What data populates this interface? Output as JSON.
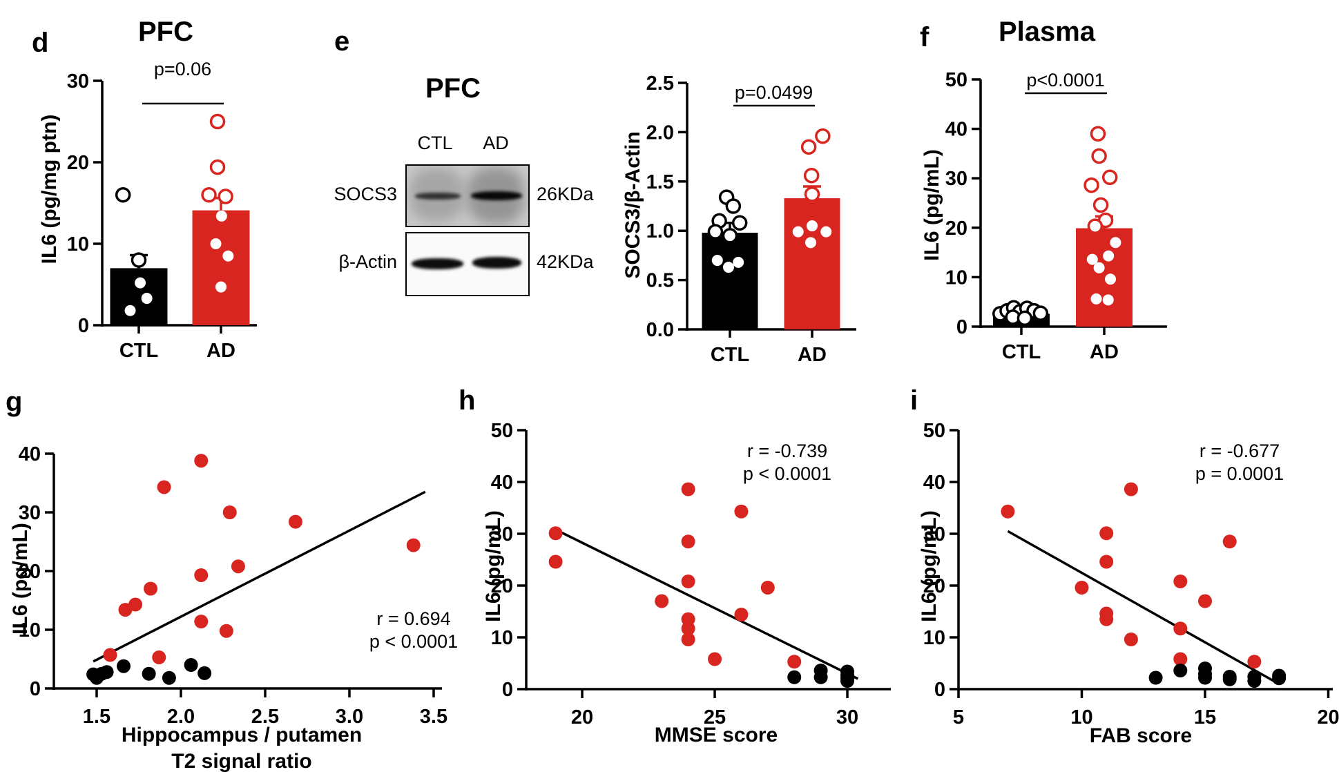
{
  "colors": {
    "ad_red": "#D8251F",
    "ctl_black": "#000000"
  },
  "panels": {
    "d": {
      "letter": "d"
    },
    "e": {
      "letter": "e",
      "blot": {
        "title": "PFC",
        "lanes": [
          "CTL",
          "AD"
        ],
        "rows": [
          {
            "protein": "SOCS3",
            "weight": "26KDa"
          },
          {
            "protein": "β-Actin",
            "weight": "42KDa"
          }
        ]
      }
    },
    "f": {
      "letter": "f"
    },
    "g": {
      "letter": "g",
      "xlabel_line1": "Hippocampus / putamen",
      "xlabel_line2": "T2 signal ratio"
    },
    "h": {
      "letter": "h"
    },
    "i": {
      "letter": "i"
    }
  },
  "chart_data": [
    {
      "id": "d",
      "type": "bar",
      "title": "PFC",
      "ylabel": "IL6 (pg/mg ptn)",
      "significance": "p=0.06",
      "ylim": [
        0,
        30
      ],
      "yticks": [
        0,
        10,
        20,
        30
      ],
      "ytick_labels": [
        "0",
        "10",
        "20",
        "30"
      ],
      "categories": [
        "CTL",
        "AD"
      ],
      "series": [
        {
          "name": "CTL",
          "color": "#000000",
          "mean": 7.0,
          "sem": 1.6,
          "points": [
            {
              "dx": -0.55,
              "y": 16.0,
              "marker": "open"
            },
            {
              "dx": 0.0,
              "y": 8.0,
              "marker": "open"
            },
            {
              "dx": 0.05,
              "y": 5.2,
              "marker": "dot"
            },
            {
              "dx": 0.28,
              "y": 3.3,
              "marker": "dot"
            },
            {
              "dx": -0.3,
              "y": 1.8,
              "marker": "dot"
            }
          ]
        },
        {
          "name": "AD",
          "color": "#D8251F",
          "mean": 14.1,
          "sem": 1.5,
          "points": [
            {
              "dx": -0.12,
              "y": 25.0,
              "marker": "open"
            },
            {
              "dx": -0.12,
              "y": 19.4,
              "marker": "open"
            },
            {
              "dx": -0.42,
              "y": 16.0,
              "marker": "open"
            },
            {
              "dx": 0.16,
              "y": 15.8,
              "marker": "open"
            },
            {
              "dx": 0.02,
              "y": 13.4,
              "marker": "dot"
            },
            {
              "dx": -0.18,
              "y": 10.0,
              "marker": "dot"
            },
            {
              "dx": 0.25,
              "y": 8.5,
              "marker": "dot"
            },
            {
              "dx": 0.0,
              "y": 4.7,
              "marker": "dot"
            }
          ]
        }
      ]
    },
    {
      "id": "e",
      "type": "bar",
      "title": "",
      "ylabel": "SOCS3/β-Actin",
      "significance": "p=0.0499",
      "ylim": [
        0,
        2.5
      ],
      "yticks": [
        0,
        0.5,
        1.0,
        1.5,
        2.0,
        2.5
      ],
      "ytick_labels": [
        "0.0",
        "0.5",
        "1.0",
        "1.5",
        "2.0",
        "2.5"
      ],
      "categories": [
        "CTL",
        "AD"
      ],
      "series": [
        {
          "name": "CTL",
          "color": "#000000",
          "mean": 0.98,
          "sem": 0.1,
          "points": [
            {
              "dx": -0.12,
              "y": 1.34,
              "marker": "open"
            },
            {
              "dx": 0.12,
              "y": 1.25,
              "marker": "open"
            },
            {
              "dx": -0.38,
              "y": 1.1,
              "marker": "open"
            },
            {
              "dx": 0.35,
              "y": 1.08,
              "marker": "open"
            },
            {
              "dx": -0.52,
              "y": 0.99,
              "marker": "open"
            },
            {
              "dx": 0.0,
              "y": 0.95,
              "marker": "open"
            },
            {
              "dx": -0.45,
              "y": 0.7,
              "marker": "dot"
            },
            {
              "dx": -0.05,
              "y": 0.63,
              "marker": "dot"
            },
            {
              "dx": 0.3,
              "y": 0.68,
              "marker": "dot"
            }
          ]
        },
        {
          "name": "AD",
          "color": "#D8251F",
          "mean": 1.33,
          "sem": 0.12,
          "points": [
            {
              "dx": 0.38,
              "y": 1.96,
              "marker": "open"
            },
            {
              "dx": -0.12,
              "y": 1.85,
              "marker": "open"
            },
            {
              "dx": -0.02,
              "y": 1.56,
              "marker": "open"
            },
            {
              "dx": 0.0,
              "y": 1.37,
              "marker": "open"
            },
            {
              "dx": -0.5,
              "y": 0.99,
              "marker": "dot"
            },
            {
              "dx": 0.0,
              "y": 1.05,
              "marker": "dot"
            },
            {
              "dx": 0.5,
              "y": 0.99,
              "marker": "dot"
            },
            {
              "dx": -0.05,
              "y": 0.88,
              "marker": "dot"
            }
          ]
        }
      ]
    },
    {
      "id": "f",
      "type": "bar",
      "title": "Plasma",
      "ylabel": "IL6 (pg/mL)",
      "significance": "p<0.0001",
      "ylim": [
        0,
        50
      ],
      "yticks": [
        0,
        10,
        20,
        30,
        40,
        50
      ],
      "ytick_labels": [
        "0",
        "10",
        "20",
        "30",
        "40",
        "50"
      ],
      "categories": [
        "CTL",
        "AD"
      ],
      "series": [
        {
          "name": "CTL",
          "color": "#000000",
          "mean": 2.6,
          "sem": 0.3,
          "points": [
            {
              "dx": -0.75,
              "y": 2.6,
              "marker": "open"
            },
            {
              "dx": -0.5,
              "y": 3.2,
              "marker": "open"
            },
            {
              "dx": -0.27,
              "y": 3.8,
              "marker": "open"
            },
            {
              "dx": -0.05,
              "y": 3.0,
              "marker": "open"
            },
            {
              "dx": 0.2,
              "y": 3.7,
              "marker": "open"
            },
            {
              "dx": 0.45,
              "y": 3.2,
              "marker": "open"
            },
            {
              "dx": 0.68,
              "y": 2.7,
              "marker": "open"
            },
            {
              "dx": -0.3,
              "y": 1.9,
              "marker": "open"
            },
            {
              "dx": 0.12,
              "y": 1.7,
              "marker": "open"
            }
          ]
        },
        {
          "name": "AD",
          "color": "#D8251F",
          "mean": 19.9,
          "sem": 2.4,
          "points": [
            {
              "dx": -0.22,
              "y": 39.0,
              "marker": "open"
            },
            {
              "dx": -0.18,
              "y": 34.5,
              "marker": "open"
            },
            {
              "dx": 0.2,
              "y": 30.2,
              "marker": "open"
            },
            {
              "dx": -0.45,
              "y": 28.6,
              "marker": "open"
            },
            {
              "dx": -0.12,
              "y": 24.6,
              "marker": "open"
            },
            {
              "dx": 0.05,
              "y": 21.5,
              "marker": "open"
            },
            {
              "dx": -0.32,
              "y": 20.3,
              "marker": "open"
            },
            {
              "dx": 0.4,
              "y": 17.0,
              "marker": "dot"
            },
            {
              "dx": 0.15,
              "y": 14.3,
              "marker": "dot"
            },
            {
              "dx": -0.42,
              "y": 13.6,
              "marker": "dot"
            },
            {
              "dx": -0.18,
              "y": 11.9,
              "marker": "dot"
            },
            {
              "dx": 0.22,
              "y": 9.6,
              "marker": "dot"
            },
            {
              "dx": -0.28,
              "y": 5.6,
              "marker": "dot"
            },
            {
              "dx": 0.14,
              "y": 5.4,
              "marker": "dot"
            }
          ]
        }
      ]
    },
    {
      "id": "g",
      "type": "scatter",
      "ylabel": "IL6 (pg/mL)",
      "xlabel": "Hippocampus / putamen T2 signal ratio",
      "r_label": "r = 0.694",
      "p_label": "p < 0.0001",
      "xlim": [
        1.246,
        3.55
      ],
      "ylim": [
        0,
        40
      ],
      "xticks": [
        1.5,
        2.0,
        2.5,
        3.0,
        3.5
      ],
      "xtick_labels": [
        "1.5",
        "2.0",
        "2.5",
        "3.0",
        "3.5"
      ],
      "yticks": [
        0,
        10,
        20,
        30,
        40
      ],
      "ytick_labels": [
        "0",
        "10",
        "20",
        "30",
        "40"
      ],
      "trendline": {
        "x1": 1.48,
        "y1": 4.6,
        "x2": 3.45,
        "y2": 33.5
      },
      "series": [
        {
          "name": "AD",
          "color": "#D8251F",
          "points": [
            [
              2.12,
              38.8
            ],
            [
              1.9,
              34.3
            ],
            [
              2.29,
              30.0
            ],
            [
              2.68,
              28.4
            ],
            [
              3.38,
              24.4
            ],
            [
              2.34,
              20.8
            ],
            [
              2.12,
              19.3
            ],
            [
              1.82,
              17.0
            ],
            [
              1.73,
              14.3
            ],
            [
              1.67,
              13.4
            ],
            [
              2.12,
              11.4
            ],
            [
              2.27,
              9.8
            ],
            [
              1.58,
              5.7
            ],
            [
              1.87,
              5.3
            ]
          ]
        },
        {
          "name": "CTL",
          "color": "#000000",
          "points": [
            [
              1.48,
              2.4
            ],
            [
              1.5,
              1.8
            ],
            [
              1.53,
              2.5
            ],
            [
              1.56,
              2.8
            ],
            [
              1.66,
              3.8
            ],
            [
              1.81,
              2.5
            ],
            [
              1.93,
              1.8
            ],
            [
              2.06,
              4.0
            ],
            [
              2.14,
              2.6
            ]
          ]
        }
      ]
    },
    {
      "id": "h",
      "type": "scatter",
      "ylabel": "IL6 (pg/mL)",
      "xlabel": "MMSE score",
      "r_label": "r = -0.739",
      "p_label": "p < 0.0001",
      "xlim": [
        17.89,
        31.7
      ],
      "ylim": [
        0,
        50
      ],
      "xticks": [
        20,
        25,
        30
      ],
      "xtick_labels": [
        "20",
        "25",
        "30"
      ],
      "yticks": [
        0,
        10,
        20,
        30,
        40,
        50
      ],
      "ytick_labels": [
        "0",
        "10",
        "20",
        "30",
        "40",
        "50"
      ],
      "trendline": {
        "x1": 19.0,
        "y1": 30.8,
        "x2": 30.4,
        "y2": 2.0
      },
      "series": [
        {
          "name": "AD",
          "color": "#D8251F",
          "points": [
            [
              24,
              38.6
            ],
            [
              26,
              34.3
            ],
            [
              19,
              30.1
            ],
            [
              24,
              28.5
            ],
            [
              19,
              24.6
            ],
            [
              24,
              20.8
            ],
            [
              27,
              19.6
            ],
            [
              23,
              17.0
            ],
            [
              26,
              14.4
            ],
            [
              24,
              13.5
            ],
            [
              24,
              11.7
            ],
            [
              24,
              9.6
            ],
            [
              25,
              5.8
            ],
            [
              28,
              5.3
            ]
          ]
        },
        {
          "name": "CTL",
          "color": "#000000",
          "points": [
            [
              28,
              2.3
            ],
            [
              29,
              3.6
            ],
            [
              29,
              2.3
            ],
            [
              30,
              3.4
            ],
            [
              30,
              2.7
            ],
            [
              30,
              2.1
            ],
            [
              30,
              1.6
            ]
          ]
        }
      ]
    },
    {
      "id": "i",
      "type": "scatter",
      "ylabel": "IL6 (pg/mL)",
      "xlabel": "FAB score",
      "r_label": "r = -0.677",
      "p_label": "p = 0.0001",
      "xlim": [
        5,
        20.3
      ],
      "ylim": [
        0,
        50
      ],
      "xticks": [
        5,
        10,
        15,
        20
      ],
      "xtick_labels": [
        "5",
        "10",
        "15",
        "20"
      ],
      "yticks": [
        0,
        10,
        20,
        30,
        40,
        50
      ],
      "ytick_labels": [
        "0",
        "10",
        "20",
        "30",
        "40",
        "50"
      ],
      "trendline": {
        "x1": 7.0,
        "y1": 30.5,
        "x2": 18.0,
        "y2": 1.0
      },
      "series": [
        {
          "name": "AD",
          "color": "#D8251F",
          "points": [
            [
              7,
              34.3
            ],
            [
              12,
              38.6
            ],
            [
              11,
              30.1
            ],
            [
              11,
              24.6
            ],
            [
              10,
              19.6
            ],
            [
              11,
              14.6
            ],
            [
              11,
              13.5
            ],
            [
              12,
              9.6
            ],
            [
              14,
              20.8
            ],
            [
              15,
              17.0
            ],
            [
              14,
              11.7
            ],
            [
              14,
              5.8
            ],
            [
              16,
              28.5
            ],
            [
              17,
              5.3
            ]
          ]
        },
        {
          "name": "CTL",
          "color": "#000000",
          "points": [
            [
              13,
              2.2
            ],
            [
              14,
              3.6
            ],
            [
              15,
              4.0
            ],
            [
              15,
              2.9
            ],
            [
              15,
              2.2
            ],
            [
              16,
              2.4
            ],
            [
              16,
              1.9
            ],
            [
              17,
              2.4
            ],
            [
              17,
              1.6
            ],
            [
              18,
              2.6
            ],
            [
              18,
              2.1
            ]
          ]
        }
      ]
    }
  ]
}
